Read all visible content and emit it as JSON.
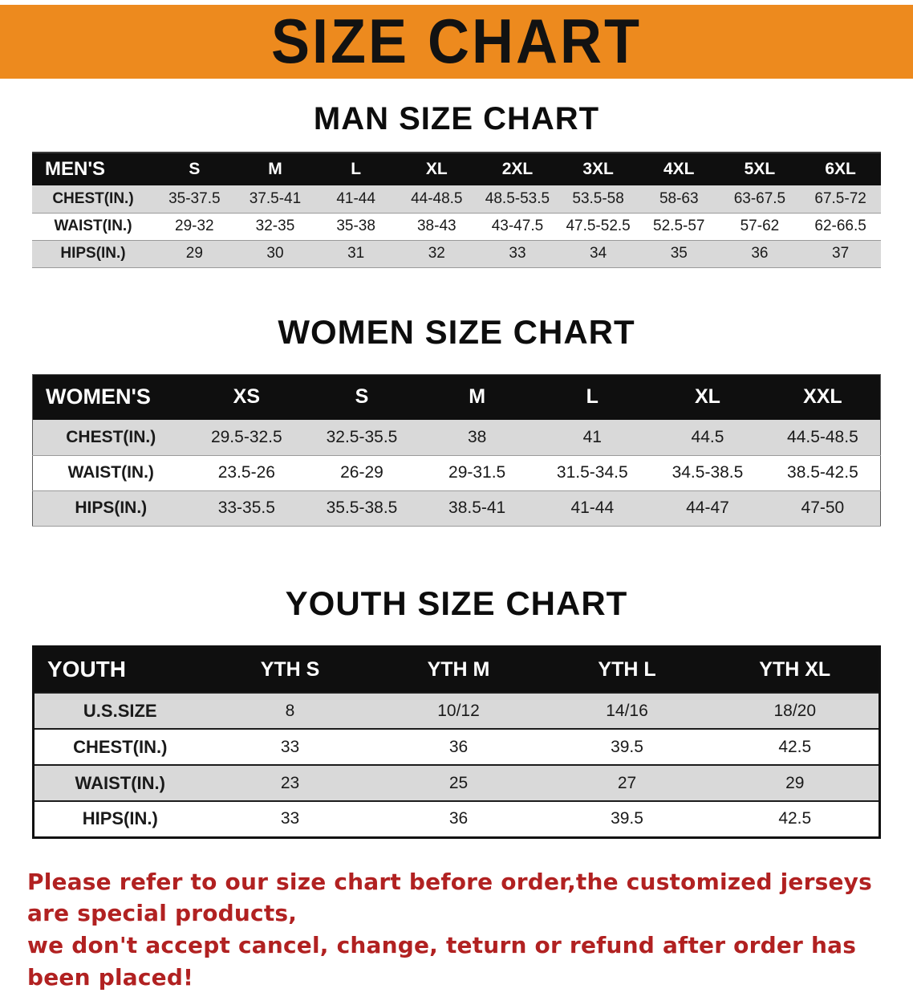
{
  "banner": {
    "title": "SIZE CHART",
    "bg_color": "#ED8A1E",
    "text_color": "#121212"
  },
  "men": {
    "heading": "MAN SIZE CHART",
    "table": {
      "header": [
        "MEN'S",
        "S",
        "M",
        "L",
        "XL",
        "2XL",
        "3XL",
        "4XL",
        "5XL",
        "6XL"
      ],
      "rows": [
        {
          "label": "CHEST(IN.)",
          "values": [
            "35-37.5",
            "37.5-41",
            "41-44",
            "44-48.5",
            "48.5-53.5",
            "53.5-58",
            "58-63",
            "63-67.5",
            "67.5-72"
          ]
        },
        {
          "label": "WAIST(IN.)",
          "values": [
            "29-32",
            "32-35",
            "35-38",
            "38-43",
            "43-47.5",
            "47.5-52.5",
            "52.5-57",
            "57-62",
            "62-66.5"
          ]
        },
        {
          "label": "HIPS(IN.)",
          "values": [
            "29",
            "30",
            "31",
            "32",
            "33",
            "34",
            "35",
            "36",
            "37"
          ]
        }
      ]
    }
  },
  "women": {
    "heading": "WOMEN SIZE CHART",
    "table": {
      "header": [
        "WOMEN'S",
        "XS",
        "S",
        "M",
        "L",
        "XL",
        "XXL"
      ],
      "rows": [
        {
          "label": "CHEST(IN.)",
          "values": [
            "29.5-32.5",
            "32.5-35.5",
            "38",
            "41",
            "44.5",
            "44.5-48.5"
          ]
        },
        {
          "label": "WAIST(IN.)",
          "values": [
            "23.5-26",
            "26-29",
            "29-31.5",
            "31.5-34.5",
            "34.5-38.5",
            "38.5-42.5"
          ]
        },
        {
          "label": "HIPS(IN.)",
          "values": [
            "33-35.5",
            "35.5-38.5",
            "38.5-41",
            "41-44",
            "44-47",
            "47-50"
          ]
        }
      ]
    }
  },
  "youth": {
    "heading": "YOUTH SIZE CHART",
    "table": {
      "header": [
        "YOUTH",
        "YTH S",
        "YTH M",
        "YTH L",
        "YTH XL"
      ],
      "rows": [
        {
          "label": "U.S.SIZE",
          "values": [
            "8",
            "10/12",
            "14/16",
            "18/20"
          ]
        },
        {
          "label": "CHEST(IN.)",
          "values": [
            "33",
            "36",
            "39.5",
            "42.5"
          ]
        },
        {
          "label": "WAIST(IN.)",
          "values": [
            "23",
            "25",
            "27",
            "29"
          ]
        },
        {
          "label": "HIPS(IN.)",
          "values": [
            "33",
            "36",
            "39.5",
            "42.5"
          ]
        }
      ]
    }
  },
  "disclaimer": {
    "line1": "Please refer to our size chart before order,the customized jerseys are special products,",
    "line2": "we don't accept cancel, change, teturn or refund after order has been placed!",
    "color": "#B12121"
  }
}
